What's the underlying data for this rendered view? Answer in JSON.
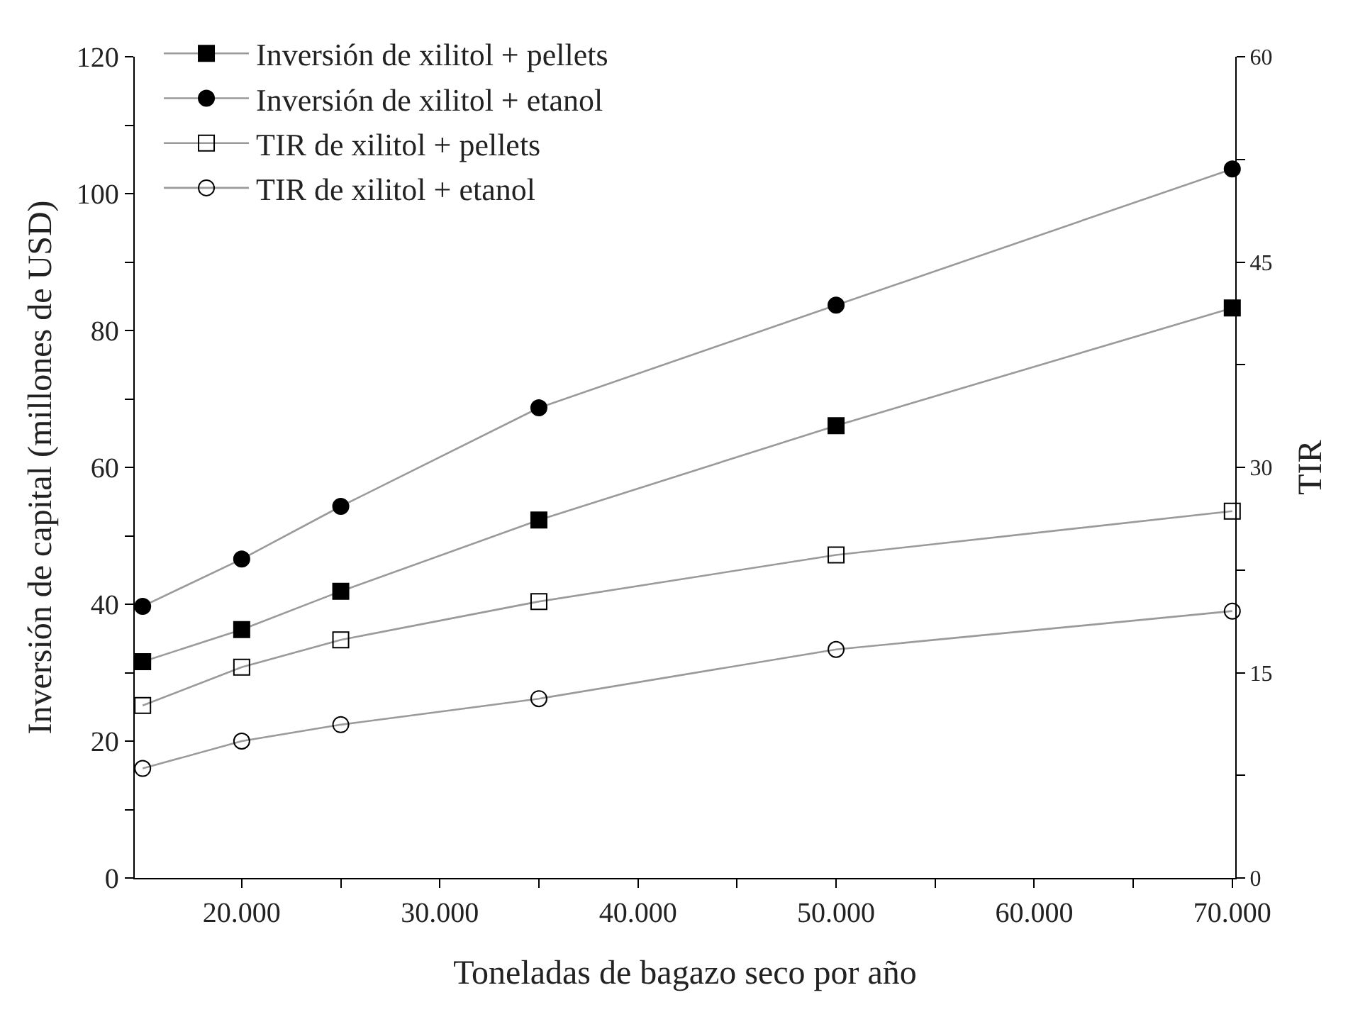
{
  "chart_data": {
    "type": "line",
    "xlabel": "Toneladas de bagazo seco por año",
    "ylabel": "Inversión de capital (millones de USD)",
    "y2label": "TIR",
    "x": [
      15000,
      20000,
      25000,
      35000,
      50000,
      70000
    ],
    "series": [
      {
        "name": "Inversión de xilitol + pellets",
        "color": "#000000",
        "marker": "square",
        "values": [
          31.6,
          36.3,
          41.9,
          52.3,
          66.1,
          83.3
        ]
      },
      {
        "name": "Inversión de xilitol + etanol",
        "color": "#000000",
        "marker": "circle",
        "values": [
          39.7,
          46.6,
          54.3,
          68.7,
          83.7,
          103.6
        ]
      },
      {
        "name": "TIR de xilitol + pellets",
        "color": "#000000",
        "marker": "square",
        "axis": "y2",
        "values": [
          12.6,
          15.4,
          17.4,
          20.2,
          23.6,
          26.8
        ]
      },
      {
        "name": "TIR de xilitol + etanol",
        "color": "#000000",
        "marker": "circle",
        "axis": "y2",
        "values": [
          8.0,
          10.0,
          11.2,
          13.1,
          16.7,
          19.5
        ]
      }
    ],
    "xlim": [
      14600,
      70150
    ],
    "xticks": [
      {
        "value": 20000,
        "label": "20.000"
      },
      {
        "value": 25000,
        "label": null
      },
      {
        "value": 30000,
        "label": "30.000"
      },
      {
        "value": 35000,
        "label": null
      },
      {
        "value": 40000,
        "label": "40.000"
      },
      {
        "value": 45000,
        "label": null
      },
      {
        "value": 50000,
        "label": "50.000"
      },
      {
        "value": 55000,
        "label": null
      },
      {
        "value": 60000,
        "label": "60.000"
      },
      {
        "value": 65000,
        "label": null
      },
      {
        "value": 70000,
        "label": "70.000"
      }
    ],
    "ylim": [
      0,
      120
    ],
    "yticks": [
      0,
      {
        "value": 10,
        "label": null
      },
      20,
      {
        "value": 30,
        "label": null
      },
      40,
      {
        "value": 50,
        "label": null
      },
      60,
      {
        "value": 70,
        "label": null
      },
      80,
      {
        "value": 90,
        "label": null
      },
      100,
      {
        "value": 110,
        "label": null
      },
      120
    ],
    "y2lim": [
      0,
      60
    ],
    "y2ticks": [
      0,
      {
        "value": 7.5,
        "label": null
      },
      15,
      {
        "value": 22.5,
        "label": null
      },
      30,
      {
        "value": 37.5,
        "label": null
      },
      45,
      {
        "value": 52.5,
        "label": null
      },
      60
    ],
    "legend": "top left",
    "line_style": "solid"
  }
}
